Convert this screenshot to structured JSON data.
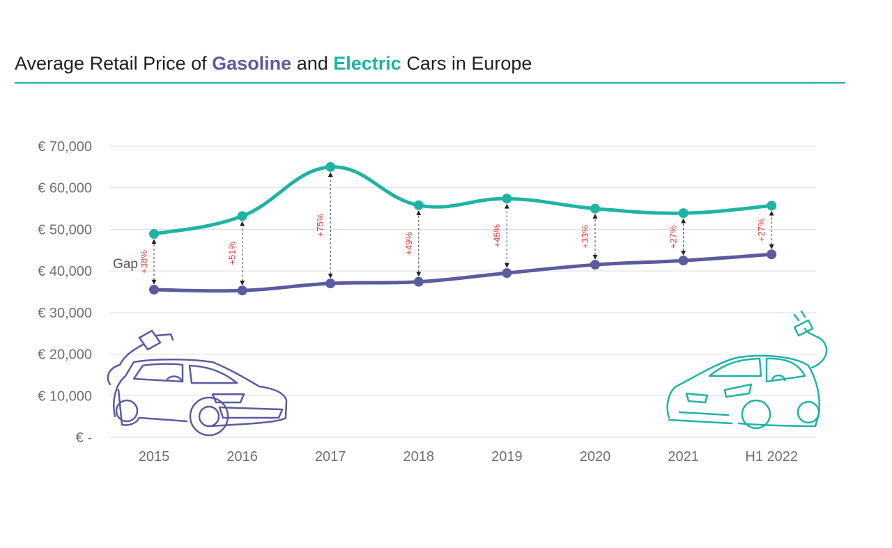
{
  "title": {
    "part1": "Average Retail Price of ",
    "gasoline": "Gasoline",
    "part2": " and ",
    "electric": "Electric",
    "part3": " Cars in Europe"
  },
  "colors": {
    "gasoline": "#5a5ba0",
    "electric": "#1fb3a4",
    "gap_label": "#e23a3a",
    "grid": "#dcdcdc"
  },
  "icons": {
    "gasoline": "gasoline-car-with-fuel-nozzle-icon",
    "electric": "electric-car-with-plug-icon"
  },
  "chart_data": {
    "type": "line",
    "categories": [
      "2015",
      "2016",
      "2017",
      "2018",
      "2019",
      "2020",
      "2021",
      "H1 2022"
    ],
    "series": [
      {
        "name": "Electric",
        "values": [
          48900,
          53200,
          65000,
          55800,
          57400,
          55000,
          53900,
          55700
        ]
      },
      {
        "name": "Gasoline",
        "values": [
          35500,
          35300,
          37000,
          37400,
          39500,
          41500,
          42500,
          44000
        ]
      }
    ],
    "gap_labels": [
      "+38%",
      "+51%",
      "+75%",
      "+49%",
      "+45%",
      "+33%",
      "+27%",
      "+27%"
    ],
    "gap_annotation": "Gap",
    "y_ticks": [
      {
        "value": 0,
        "label": "€ -"
      },
      {
        "value": 10000,
        "label": "€ 10,000"
      },
      {
        "value": 20000,
        "label": "€ 20,000"
      },
      {
        "value": 30000,
        "label": "€ 30,000"
      },
      {
        "value": 40000,
        "label": "€ 40,000"
      },
      {
        "value": 50000,
        "label": "€ 50,000"
      },
      {
        "value": 60000,
        "label": "€ 60,000"
      },
      {
        "value": 70000,
        "label": "€ 70,000"
      }
    ],
    "ylim": [
      0,
      70000
    ],
    "grid": true,
    "xlabel": "",
    "ylabel": ""
  }
}
